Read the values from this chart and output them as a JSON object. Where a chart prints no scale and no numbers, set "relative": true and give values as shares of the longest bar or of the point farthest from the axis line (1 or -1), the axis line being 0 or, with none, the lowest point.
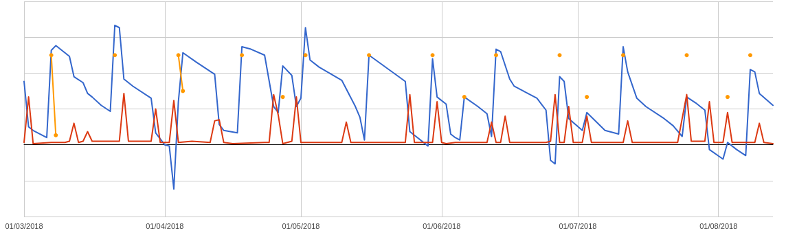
{
  "chart_data": {
    "type": "line",
    "relative": true,
    "grid": true,
    "marker": "none",
    "line_style": "solid",
    "xlim": [
      "2018-03-01",
      "2018-08-13"
    ],
    "xticks": [
      {
        "value": "2018-03-01",
        "label": "01/03/2018"
      },
      {
        "value": "2018-04-01",
        "label": "01/04/2018"
      },
      {
        "value": "2018-05-01",
        "label": "01/05/2018"
      },
      {
        "value": "2018-06-01",
        "label": "01/06/2018"
      },
      {
        "value": "2018-07-01",
        "label": "01/07/2018"
      },
      {
        "value": "2018-08-01",
        "label": "01/08/2018"
      }
    ],
    "series": [
      {
        "color": "#3366cc",
        "x": [
          "2018-03-01",
          "2018-03-02",
          "2018-03-03",
          "2018-03-06",
          "2018-03-07",
          "2018-03-08",
          "2018-03-09",
          "2018-03-11",
          "2018-03-12",
          "2018-03-14",
          "2018-03-15",
          "2018-03-16",
          "2018-03-18",
          "2018-03-20",
          "2018-03-21",
          "2018-03-22",
          "2018-03-23",
          "2018-03-25",
          "2018-03-29",
          "2018-03-30",
          "2018-04-01",
          "2018-04-02",
          "2018-04-03",
          "2018-04-04",
          "2018-04-05",
          "2018-04-08",
          "2018-04-12",
          "2018-04-13",
          "2018-04-14",
          "2018-04-17",
          "2018-04-18",
          "2018-04-20",
          "2018-04-23",
          "2018-04-25",
          "2018-04-26",
          "2018-04-27",
          "2018-04-29",
          "2018-04-30",
          "2018-05-01",
          "2018-05-02",
          "2018-05-03",
          "2018-05-05",
          "2018-05-10",
          "2018-05-13",
          "2018-05-14",
          "2018-05-15",
          "2018-05-16",
          "2018-05-24",
          "2018-05-25",
          "2018-05-29",
          "2018-05-30",
          "2018-05-31",
          "2018-06-02",
          "2018-06-03",
          "2018-06-04",
          "2018-06-05",
          "2018-06-06",
          "2018-06-09",
          "2018-06-11",
          "2018-06-12",
          "2018-06-13",
          "2018-06-14",
          "2018-06-16",
          "2018-06-17",
          "2018-06-22",
          "2018-06-23",
          "2018-06-24",
          "2018-06-25",
          "2018-06-26",
          "2018-06-27",
          "2018-06-28",
          "2018-06-29",
          "2018-07-02",
          "2018-07-03",
          "2018-07-07",
          "2018-07-10",
          "2018-07-11",
          "2018-07-12",
          "2018-07-14",
          "2018-07-16",
          "2018-07-20",
          "2018-07-22",
          "2018-07-24",
          "2018-07-25",
          "2018-07-27",
          "2018-07-29",
          "2018-07-30",
          "2018-08-02",
          "2018-08-03",
          "2018-08-05",
          "2018-08-07",
          "2018-08-08",
          "2018-08-09",
          "2018-08-10",
          "2018-08-13"
        ],
        "values": [
          0.53,
          0.15,
          0.12,
          0.06,
          0.79,
          0.83,
          0.8,
          0.74,
          0.57,
          0.52,
          0.43,
          0.4,
          0.33,
          0.28,
          1.0,
          0.98,
          0.55,
          0.49,
          0.39,
          0.1,
          0,
          -0.01,
          -0.37,
          0.36,
          0.77,
          0.69,
          0.59,
          0.17,
          0.12,
          0.1,
          0.82,
          0.8,
          0.75,
          0.32,
          0.27,
          0.66,
          0.58,
          0.32,
          0.39,
          0.98,
          0.71,
          0.65,
          0.54,
          0.32,
          0.23,
          0.04,
          0.75,
          0.53,
          0.11,
          -0.01,
          0.72,
          0.4,
          0.34,
          0.09,
          0.06,
          0.04,
          0.4,
          0.32,
          0.26,
          0.07,
          0.8,
          0.78,
          0.55,
          0.49,
          0.39,
          0.34,
          0.29,
          -0.13,
          -0.16,
          0.57,
          0.53,
          0.22,
          0.12,
          0.27,
          0.12,
          0.09,
          0.82,
          0.61,
          0.39,
          0.32,
          0.22,
          0.16,
          0.07,
          0.4,
          0.35,
          0.29,
          -0.04,
          -0.12,
          0.02,
          -0.04,
          -0.09,
          0.63,
          0.61,
          0.43,
          0.33
        ]
      },
      {
        "color": "#dc3912",
        "x": [
          "2018-03-01",
          "2018-03-02",
          "2018-03-03",
          "2018-03-07",
          "2018-03-10",
          "2018-03-11",
          "2018-03-12",
          "2018-03-13",
          "2018-03-14",
          "2018-03-15",
          "2018-03-16",
          "2018-03-19",
          "2018-03-22",
          "2018-03-23",
          "2018-03-24",
          "2018-03-29",
          "2018-03-30",
          "2018-03-31",
          "2018-04-02",
          "2018-04-03",
          "2018-04-04",
          "2018-04-07",
          "2018-04-11",
          "2018-04-12",
          "2018-04-13",
          "2018-04-14",
          "2018-04-16",
          "2018-04-23",
          "2018-04-24",
          "2018-04-25",
          "2018-04-26",
          "2018-04-27",
          "2018-04-29",
          "2018-04-30",
          "2018-05-01",
          "2018-05-10",
          "2018-05-11",
          "2018-05-12",
          "2018-05-24",
          "2018-05-25",
          "2018-05-26",
          "2018-05-30",
          "2018-05-31",
          "2018-06-01",
          "2018-06-02",
          "2018-06-04",
          "2018-06-10",
          "2018-06-11",
          "2018-06-12",
          "2018-06-13",
          "2018-06-14",
          "2018-06-15",
          "2018-06-16",
          "2018-06-24",
          "2018-06-25",
          "2018-06-26",
          "2018-06-27",
          "2018-06-28",
          "2018-06-29",
          "2018-06-30",
          "2018-07-02",
          "2018-07-03",
          "2018-07-04",
          "2018-07-11",
          "2018-07-12",
          "2018-07-13",
          "2018-07-23",
          "2018-07-25",
          "2018-07-26",
          "2018-07-29",
          "2018-07-30",
          "2018-07-31",
          "2018-08-02",
          "2018-08-03",
          "2018-08-04",
          "2018-08-09",
          "2018-08-10",
          "2018-08-11",
          "2018-08-13"
        ],
        "values": [
          0.02,
          0.4,
          0.01,
          0.02,
          0.02,
          0.03,
          0.18,
          0.02,
          0.03,
          0.11,
          0.03,
          0.03,
          0.03,
          0.43,
          0.03,
          0.03,
          0.3,
          0.02,
          0.02,
          0.37,
          0.02,
          0.03,
          0.02,
          0.2,
          0.21,
          0.02,
          0.01,
          0.02,
          0.02,
          0.42,
          0.25,
          0.01,
          0.03,
          0.4,
          0.02,
          0.02,
          0.19,
          0.02,
          0.02,
          0.42,
          0.02,
          0.02,
          0.36,
          0.02,
          0.01,
          0.02,
          0.02,
          0.02,
          0.19,
          0.02,
          0.02,
          0.24,
          0.02,
          0.02,
          0.03,
          0.42,
          0.02,
          0.02,
          0.32,
          0.02,
          0.02,
          0.24,
          0.02,
          0.02,
          0.2,
          0.02,
          0.02,
          0.42,
          0.03,
          0.03,
          0.36,
          0.02,
          0.02,
          0.27,
          0.02,
          0.02,
          0.18,
          0.02,
          0.01
        ]
      },
      {
        "color": "#ff9900",
        "marker": "circle",
        "x": [
          "2018-03-07",
          "2018-03-08",
          "2018-03-09",
          "2018-03-21",
          "2018-03-22",
          "2018-04-04",
          "2018-04-05",
          "2018-04-06",
          "2018-04-18",
          "2018-04-19",
          "2018-04-27",
          "2018-04-28",
          "2018-05-02",
          "2018-05-03",
          "2018-05-16",
          "2018-05-17",
          "2018-05-30",
          "2018-05-31",
          "2018-06-06",
          "2018-06-07",
          "2018-06-13",
          "2018-06-14",
          "2018-06-27",
          "2018-06-28",
          "2018-07-03",
          "2018-07-04",
          "2018-07-11",
          "2018-07-12",
          "2018-07-25",
          "2018-07-26",
          "2018-08-03",
          "2018-08-04",
          "2018-08-08"
        ],
        "values": [
          0.75,
          0.08,
          null,
          0.75,
          null,
          0.75,
          0.45,
          null,
          0.75,
          null,
          0.4,
          null,
          0.75,
          null,
          0.75,
          null,
          0.75,
          null,
          0.4,
          null,
          0.75,
          null,
          0.75,
          null,
          0.4,
          null,
          0.75,
          null,
          0.75,
          null,
          0.4,
          null,
          0.75
        ]
      }
    ]
  }
}
